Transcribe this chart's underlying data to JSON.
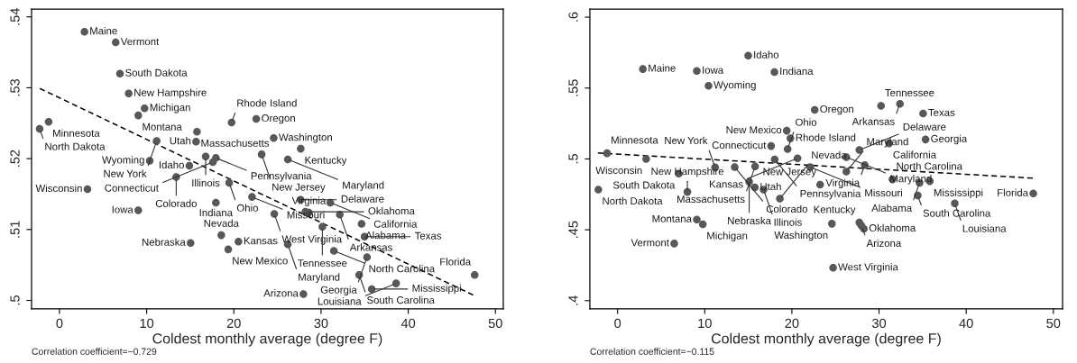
{
  "chart_data": [
    {
      "type": "scatter",
      "xlabel": "Coldest monthly average (degree F)",
      "xlim": [
        -3.2,
        50.9
      ],
      "ylim": [
        0.4988,
        0.5411
      ],
      "xticks": [
        0,
        10,
        20,
        30,
        40,
        50
      ],
      "yticks": [
        {
          "value": 0.5,
          "label": ".5"
        },
        {
          "value": 0.51,
          "label": ".51"
        },
        {
          "value": 0.52,
          "label": ".52"
        },
        {
          "value": 0.53,
          "label": ".53"
        },
        {
          "value": 0.54,
          "label": ".54"
        }
      ],
      "grid": false,
      "legend": false,
      "series": [
        {
          "marker": "circle",
          "color": "#585858",
          "x": [
            2.87,
            6.45,
            6.94,
            7.94,
            9.76,
            9.04,
            -1.24,
            -2.28,
            19.74,
            22.57,
            15.77,
            11.15,
            15.67,
            16.77,
            17.94,
            17.6,
            10.35,
            14.9,
            13.39,
            19.46,
            24.57,
            27.67,
            23.19,
            26.19,
            3.21,
            9.04,
            17.94,
            22.08,
            18.56,
            15.04,
            20.53,
            19.36,
            27.67,
            31.06,
            24.64,
            28.2,
            28.6,
            32.15,
            30.15,
            34.65,
            34.99,
            26.19,
            31.47,
            35.27,
            34.37,
            47.62,
            38.61,
            35.82,
            27.98
          ],
          "values": [
            0.5379,
            0.5364,
            0.532,
            0.5292,
            0.5271,
            0.5261,
            0.5252,
            0.5242,
            0.5251,
            0.5256,
            0.5238,
            0.5225,
            0.5224,
            0.5203,
            0.5201,
            0.5195,
            0.5197,
            0.519,
            0.5174,
            0.5166,
            0.5229,
            0.5214,
            0.5206,
            0.5199,
            0.5157,
            0.5127,
            0.5138,
            0.5146,
            0.5092,
            0.5081,
            0.5083,
            0.5072,
            0.5142,
            0.5138,
            0.5122,
            0.5125,
            0.5124,
            0.5121,
            0.5104,
            0.5108,
            0.509,
            0.5079,
            0.507,
            0.5061,
            0.5036,
            0.5036,
            0.5024,
            0.5016,
            0.5009
          ]
        },
        {
          "type": "line",
          "color": "#000000",
          "line_style": "dashed",
          "x": [
            -2.25,
            47.55
          ],
          "values": [
            0.5299,
            0.5007
          ]
        }
      ],
      "annotations": [
        {
          "text": "Maine",
          "x": 2.87,
          "y": 0.5379
        },
        {
          "text": "Vermont",
          "x": 6.45,
          "y": 0.5364
        },
        {
          "text": "South Dakota",
          "x": 6.94,
          "y": 0.532
        },
        {
          "text": "New Hampshire",
          "x": 7.94,
          "y": 0.5292
        },
        {
          "text": "Michigan",
          "x": 9.76,
          "y": 0.5271
        },
        {
          "text": "Montana",
          "x": 9.04,
          "y": 0.5261
        },
        {
          "text": "Minnesota",
          "x": -1.24,
          "y": 0.5252
        },
        {
          "text": "North Dakota",
          "x": -2.28,
          "y": 0.5242
        },
        {
          "text": "Rhode Island",
          "x": 19.74,
          "y": 0.5251
        },
        {
          "text": "Oregon",
          "x": 22.57,
          "y": 0.5256
        },
        {
          "text": "Massachusetts",
          "x": 15.77,
          "y": 0.5238
        },
        {
          "text": "New York",
          "x": 11.15,
          "y": 0.5225
        },
        {
          "text": "Utah",
          "x": 15.67,
          "y": 0.5224
        },
        {
          "text": "Illinois",
          "x": 16.77,
          "y": 0.5203
        },
        {
          "text": "Pennsylvania",
          "x": 17.94,
          "y": 0.5201
        },
        {
          "text": "Connecticut",
          "x": 17.6,
          "y": 0.5195
        },
        {
          "text": "Wyoming",
          "x": 10.35,
          "y": 0.5197
        },
        {
          "text": "Idaho",
          "x": 14.9,
          "y": 0.519
        },
        {
          "text": "Colorado",
          "x": 13.39,
          "y": 0.5174
        },
        {
          "text": "Ohio",
          "x": 19.46,
          "y": 0.5166
        },
        {
          "text": "Washington",
          "x": 24.57,
          "y": 0.5229
        },
        {
          "text": "Kentucky",
          "x": 27.67,
          "y": 0.5214
        },
        {
          "text": "New Jersey",
          "x": 23.19,
          "y": 0.5206
        },
        {
          "text": "Maryland",
          "x": 26.19,
          "y": 0.5199
        },
        {
          "text": "Wisconsin",
          "x": 3.21,
          "y": 0.5157
        },
        {
          "text": "Iowa",
          "x": 9.04,
          "y": 0.5127
        },
        {
          "text": "Indiana",
          "x": 17.94,
          "y": 0.5138
        },
        {
          "text": "Missouri",
          "x": 22.08,
          "y": 0.5146
        },
        {
          "text": "Nevada",
          "x": 18.56,
          "y": 0.5092
        },
        {
          "text": "Nebraska",
          "x": 15.04,
          "y": 0.5081
        },
        {
          "text": "Kansas",
          "x": 20.53,
          "y": 0.5083
        },
        {
          "text": "New Mexico",
          "x": 19.36,
          "y": 0.5072
        },
        {
          "text": "Delaware",
          "x": 27.67,
          "y": 0.5142
        },
        {
          "text": "California",
          "x": 31.06,
          "y": 0.5138
        },
        {
          "text": "West Virginia",
          "x": 24.64,
          "y": 0.5122
        },
        {
          "text": "Oklahoma",
          "x": 28.2,
          "y": 0.5125
        },
        {
          "text": "Virginia",
          "x": 28.6,
          "y": 0.5124
        },
        {
          "text": "Arkansas",
          "x": 32.15,
          "y": 0.5121
        },
        {
          "text": "Tennessee",
          "x": 30.15,
          "y": 0.5104
        },
        {
          "text": "Alabama",
          "x": 34.65,
          "y": 0.5108
        },
        {
          "text": "Texas",
          "x": 34.99,
          "y": 0.509
        },
        {
          "text": "Maryland",
          "x": 26.19,
          "y": 0.5079
        },
        {
          "text": "North Carolina",
          "x": 31.47,
          "y": 0.507
        },
        {
          "text": "Georgia",
          "x": 35.27,
          "y": 0.5061
        },
        {
          "text": "South Carolina",
          "x": 34.37,
          "y": 0.5036
        },
        {
          "text": "Florida",
          "x": 47.62,
          "y": 0.5036
        },
        {
          "text": "Louisiana",
          "x": 38.61,
          "y": 0.5024
        },
        {
          "text": "Mississippi",
          "x": 35.82,
          "y": 0.5016
        },
        {
          "text": "Arizona",
          "x": 27.98,
          "y": 0.5009
        },
        "Correlation coefficient=−0.729"
      ]
    },
    {
      "type": "scatter",
      "xlabel": "Coldest monthly average (degree F)",
      "xlim": [
        -3.18,
        51.06
      ],
      "ylim": [
        0.3942,
        0.6057
      ],
      "xticks": [
        0,
        10,
        20,
        30,
        40,
        50
      ],
      "yticks": [
        {
          "value": 0.4,
          "label": ".4"
        },
        {
          "value": 0.45,
          "label": ".45"
        },
        {
          "value": 0.5,
          "label": ".5"
        },
        {
          "value": 0.55,
          "label": ".55"
        },
        {
          "value": 0.6,
          "label": ".6"
        }
      ],
      "grid": false,
      "legend": false,
      "series": [
        {
          "marker": "circle",
          "color": "#585858",
          "x": [
            14.99,
            2.9,
            9.09,
            18.0,
            10.44,
            19.41,
            19.83,
            17.62,
            19.51,
            -1.21,
            3.28,
            18.03,
            20.65,
            7.02,
            11.19,
            13.44,
            15.78,
            22.1,
            15.1,
            15.75,
            16.75,
            -2.21,
            8.01,
            18.62,
            9.09,
            9.78,
            6.5,
            22.62,
            30.23,
            32.4,
            35.06,
            35.34,
            31.16,
            27.74,
            26.25,
            28.36,
            26.25,
            31.54,
            34.65,
            35.82,
            23.24,
            34.44,
            47.7,
            38.69,
            24.59,
            27.74,
            27.98,
            28.26,
            24.73
          ],
          "values": [
            0.5729,
            0.5634,
            0.5621,
            0.5613,
            0.5516,
            0.5199,
            0.5145,
            0.5091,
            0.5069,
            0.504,
            0.5,
            0.4997,
            0.5004,
            0.4896,
            0.494,
            0.4942,
            0.4947,
            0.4942,
            0.4839,
            0.4799,
            0.4784,
            0.4784,
            0.4767,
            0.472,
            0.4572,
            0.4539,
            0.4403,
            0.5346,
            0.5374,
            0.5389,
            0.5321,
            0.5137,
            0.511,
            0.5063,
            0.5012,
            0.4957,
            0.4911,
            0.4856,
            0.4831,
            0.4843,
            0.4818,
            0.4742,
            0.4756,
            0.4687,
            0.4543,
            0.4551,
            0.453,
            0.4507,
            0.4232
          ]
        },
        {
          "type": "line",
          "color": "#000000",
          "line_style": "dashed",
          "x": [
            -2.25,
            47.74
          ],
          "values": [
            0.5042,
            0.4864
          ]
        }
      ],
      "annotations": [
        {
          "text": "Idaho",
          "x": 14.99,
          "y": 0.5729
        },
        {
          "text": "Maine",
          "x": 2.9,
          "y": 0.5634
        },
        {
          "text": "Iowa",
          "x": 9.09,
          "y": 0.5621
        },
        {
          "text": "Indiana",
          "x": 18.0,
          "y": 0.5613
        },
        {
          "text": "Wyoming",
          "x": 10.44,
          "y": 0.5516
        },
        {
          "text": "New Mexico",
          "x": 19.41,
          "y": 0.5199
        },
        {
          "text": "Rhode Island",
          "x": 19.83,
          "y": 0.5145
        },
        {
          "text": "Connecticut",
          "x": 17.62,
          "y": 0.5091
        },
        {
          "text": "Ohio",
          "x": 19.51,
          "y": 0.5069
        },
        {
          "text": "Minnesota",
          "x": -1.21,
          "y": 0.504
        },
        {
          "text": "Wisconsin",
          "x": 3.28,
          "y": 0.5
        },
        {
          "text": "Pennsylvania",
          "x": 18.03,
          "y": 0.4997
        },
        {
          "text": "Kansas",
          "x": 20.65,
          "y": 0.5004
        },
        {
          "text": "South Dakota",
          "x": 7.02,
          "y": 0.4896
        },
        {
          "text": "New York",
          "x": 11.19,
          "y": 0.494
        },
        {
          "text": "Colorado",
          "x": 13.44,
          "y": 0.4942
        },
        {
          "text": "Massachusetts",
          "x": 15.78,
          "y": 0.4947
        },
        {
          "text": "Missouri",
          "x": 22.1,
          "y": 0.4942
        },
        {
          "text": "Nebraska",
          "x": 15.1,
          "y": 0.4839
        },
        {
          "text": "Utah",
          "x": 15.75,
          "y": 0.4799
        },
        {
          "text": "Illinois",
          "x": 16.75,
          "y": 0.4784
        },
        {
          "text": "North Dakota",
          "x": -2.21,
          "y": 0.4784
        },
        {
          "text": "New Hampshire",
          "x": 8.01,
          "y": 0.4767
        },
        {
          "text": "Nevada",
          "x": 18.62,
          "y": 0.472
        },
        {
          "text": "Montana",
          "x": 9.09,
          "y": 0.4572
        },
        {
          "text": "Michigan",
          "x": 9.78,
          "y": 0.4539
        },
        {
          "text": "Vermont",
          "x": 6.5,
          "y": 0.4403
        },
        {
          "text": "Oregon",
          "x": 22.62,
          "y": 0.5346
        },
        {
          "text": "Tennessee",
          "x": 30.23,
          "y": 0.5374
        },
        {
          "text": "Arkansas",
          "x": 32.4,
          "y": 0.5389
        },
        {
          "text": "Texas",
          "x": 35.06,
          "y": 0.5321
        },
        {
          "text": "Georgia",
          "x": 35.34,
          "y": 0.5137
        },
        {
          "text": "California",
          "x": 31.16,
          "y": 0.511
        },
        {
          "text": "Delaware",
          "x": 27.74,
          "y": 0.5063
        },
        {
          "text": "Maryland",
          "x": 26.25,
          "y": 0.5012
        },
        {
          "text": "Virginia",
          "x": 28.36,
          "y": 0.4957
        },
        {
          "text": "Maryland",
          "x": 26.25,
          "y": 0.4911
        },
        {
          "text": "North Carolina",
          "x": 31.54,
          "y": 0.4856
        },
        {
          "text": "Alabama",
          "x": 34.65,
          "y": 0.4831
        },
        {
          "text": "Mississippi",
          "x": 35.82,
          "y": 0.4843
        },
        {
          "text": "New Jersey",
          "x": 23.24,
          "y": 0.4818
        },
        {
          "text": "South Carolina",
          "x": 34.44,
          "y": 0.4742
        },
        {
          "text": "Florida",
          "x": 47.7,
          "y": 0.4756
        },
        {
          "text": "Louisiana",
          "x": 38.69,
          "y": 0.4687
        },
        {
          "text": "Washington",
          "x": 24.59,
          "y": 0.4543
        },
        {
          "text": "Kentucky",
          "x": 27.74,
          "y": 0.4551
        },
        {
          "text": "Arizona",
          "x": 27.98,
          "y": 0.453
        },
        {
          "text": "Oklahoma",
          "x": 28.26,
          "y": 0.4507
        },
        {
          "text": "West Virginia",
          "x": 24.73,
          "y": 0.4232
        },
        "Correlation coefficient=−0.115"
      ]
    }
  ]
}
